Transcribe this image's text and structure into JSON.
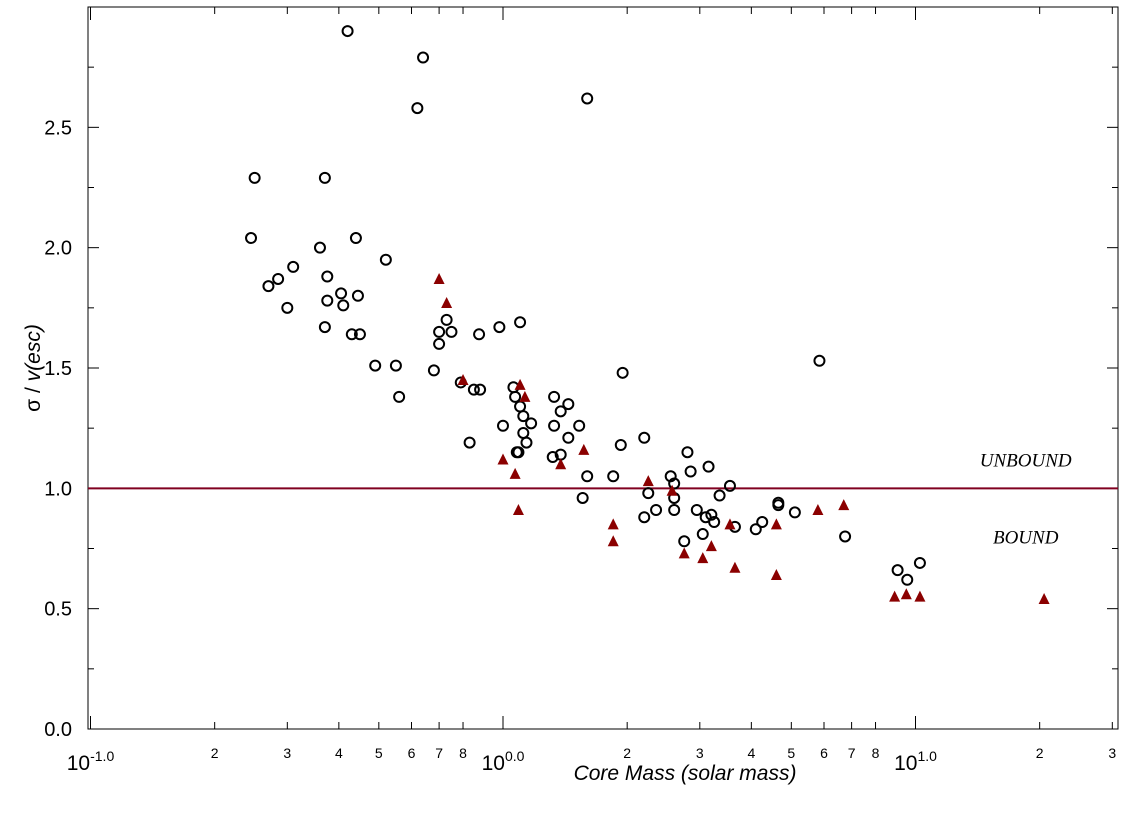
{
  "chart_data": {
    "type": "scatter",
    "xscale": "log",
    "xlim": [
      0.1,
      32
    ],
    "ylim": [
      0.0,
      3.0
    ],
    "xlabel": "Core Mass (solar mass)",
    "ylabel_sigma": "σ / ",
    "ylabel_v": "v(esc)",
    "x_major_ticks": [
      {
        "value": 0.1,
        "base": "10",
        "exp": "-1.0"
      },
      {
        "value": 1.0,
        "base": "10",
        "exp": "0.0"
      },
      {
        "value": 10.0,
        "base": "10",
        "exp": "1.0"
      }
    ],
    "x_minor_ticks": [
      {
        "value": 0.2,
        "label": "2"
      },
      {
        "value": 0.3,
        "label": "3"
      },
      {
        "value": 0.4,
        "label": "4"
      },
      {
        "value": 0.5,
        "label": "5"
      },
      {
        "value": 0.6,
        "label": "6"
      },
      {
        "value": 0.7,
        "label": "7"
      },
      {
        "value": 0.8,
        "label": "8"
      },
      {
        "value": 2,
        "label": "2"
      },
      {
        "value": 3,
        "label": "3"
      },
      {
        "value": 4,
        "label": "4"
      },
      {
        "value": 5,
        "label": "5"
      },
      {
        "value": 6,
        "label": "6"
      },
      {
        "value": 7,
        "label": "7"
      },
      {
        "value": 8,
        "label": "8"
      },
      {
        "value": 20,
        "label": "2"
      },
      {
        "value": 30,
        "label": "3"
      }
    ],
    "y_ticks": [
      {
        "value": 0.0,
        "label": "0.0"
      },
      {
        "value": 0.5,
        "label": "0.5"
      },
      {
        "value": 1.0,
        "label": "1.0"
      },
      {
        "value": 1.5,
        "label": "1.5"
      },
      {
        "value": 2.0,
        "label": "2.0"
      },
      {
        "value": 2.5,
        "label": "2.5"
      }
    ],
    "y_minor_step": 0.25,
    "reference_line": {
      "y": 1.0,
      "color": "#800020"
    },
    "annotations": [
      {
        "text": "UNBOUND",
        "x": 18.5,
        "y": 1.12
      },
      {
        "text": "BOUND",
        "x": 18.5,
        "y": 0.8
      }
    ],
    "series": [
      {
        "marker": "circle-open",
        "color": "#000000",
        "points": [
          [
            0.42,
            2.9
          ],
          [
            0.64,
            2.79
          ],
          [
            0.62,
            2.58
          ],
          [
            1.6,
            2.62
          ],
          [
            0.25,
            2.29
          ],
          [
            0.37,
            2.29
          ],
          [
            0.245,
            2.04
          ],
          [
            0.36,
            2.0
          ],
          [
            0.44,
            2.04
          ],
          [
            0.27,
            1.84
          ],
          [
            0.285,
            1.87
          ],
          [
            0.31,
            1.92
          ],
          [
            0.3,
            1.75
          ],
          [
            0.375,
            1.88
          ],
          [
            0.375,
            1.78
          ],
          [
            0.405,
            1.81
          ],
          [
            0.41,
            1.76
          ],
          [
            0.445,
            1.8
          ],
          [
            0.37,
            1.67
          ],
          [
            0.43,
            1.64
          ],
          [
            0.45,
            1.64
          ],
          [
            0.52,
            1.95
          ],
          [
            0.49,
            1.51
          ],
          [
            0.55,
            1.51
          ],
          [
            0.56,
            1.38
          ],
          [
            0.68,
            1.49
          ],
          [
            0.7,
            1.6
          ],
          [
            0.7,
            1.65
          ],
          [
            0.73,
            1.7
          ],
          [
            0.75,
            1.65
          ],
          [
            0.79,
            1.44
          ],
          [
            0.85,
            1.41
          ],
          [
            0.88,
            1.41
          ],
          [
            0.875,
            1.64
          ],
          [
            0.98,
            1.67
          ],
          [
            1.1,
            1.69
          ],
          [
            0.83,
            1.19
          ],
          [
            1.0,
            1.26
          ],
          [
            1.06,
            1.42
          ],
          [
            1.07,
            1.38
          ],
          [
            1.1,
            1.34
          ],
          [
            1.12,
            1.3
          ],
          [
            1.17,
            1.27
          ],
          [
            1.12,
            1.23
          ],
          [
            1.14,
            1.19
          ],
          [
            1.08,
            1.15
          ],
          [
            1.09,
            1.15
          ],
          [
            1.33,
            1.38
          ],
          [
            1.33,
            1.26
          ],
          [
            1.38,
            1.32
          ],
          [
            1.44,
            1.35
          ],
          [
            1.44,
            1.21
          ],
          [
            1.53,
            1.26
          ],
          [
            1.38,
            1.14
          ],
          [
            1.32,
            1.13
          ],
          [
            1.56,
            0.96
          ],
          [
            1.6,
            1.05
          ],
          [
            1.85,
            1.05
          ],
          [
            1.93,
            1.18
          ],
          [
            1.95,
            1.48
          ],
          [
            2.2,
            1.21
          ],
          [
            2.2,
            0.88
          ],
          [
            2.25,
            0.98
          ],
          [
            2.35,
            0.91
          ],
          [
            2.55,
            1.05
          ],
          [
            2.6,
            1.02
          ],
          [
            2.6,
            0.96
          ],
          [
            2.6,
            0.91
          ],
          [
            2.75,
            0.78
          ],
          [
            2.8,
            1.15
          ],
          [
            2.85,
            1.07
          ],
          [
            2.95,
            0.91
          ],
          [
            3.15,
            1.09
          ],
          [
            3.05,
            0.81
          ],
          [
            3.1,
            0.88
          ],
          [
            3.2,
            0.89
          ],
          [
            3.25,
            0.86
          ],
          [
            3.35,
            0.97
          ],
          [
            3.55,
            1.01
          ],
          [
            3.65,
            0.84
          ],
          [
            4.1,
            0.83
          ],
          [
            4.25,
            0.86
          ],
          [
            4.65,
            0.94
          ],
          [
            4.65,
            0.93
          ],
          [
            5.1,
            0.9
          ],
          [
            5.85,
            1.53
          ],
          [
            6.75,
            0.8
          ],
          [
            9.05,
            0.66
          ],
          [
            9.55,
            0.62
          ],
          [
            10.25,
            0.69
          ]
        ]
      },
      {
        "marker": "triangle-filled",
        "color": "#8b0000",
        "points": [
          [
            0.7,
            1.87
          ],
          [
            0.73,
            1.77
          ],
          [
            0.8,
            1.45
          ],
          [
            1.1,
            1.43
          ],
          [
            1.13,
            1.38
          ],
          [
            1.0,
            1.12
          ],
          [
            1.07,
            1.06
          ],
          [
            1.09,
            0.91
          ],
          [
            1.38,
            1.1
          ],
          [
            1.57,
            1.16
          ],
          [
            1.85,
            0.85
          ],
          [
            1.85,
            0.78
          ],
          [
            2.25,
            1.03
          ],
          [
            2.57,
            0.99
          ],
          [
            2.75,
            0.73
          ],
          [
            3.05,
            0.71
          ],
          [
            3.2,
            0.76
          ],
          [
            3.55,
            0.85
          ],
          [
            3.65,
            0.67
          ],
          [
            4.6,
            0.85
          ],
          [
            4.6,
            0.64
          ],
          [
            5.8,
            0.91
          ],
          [
            6.7,
            0.93
          ],
          [
            8.9,
            0.55
          ],
          [
            9.5,
            0.56
          ],
          [
            10.25,
            0.55
          ],
          [
            20.5,
            0.54
          ]
        ]
      }
    ]
  }
}
